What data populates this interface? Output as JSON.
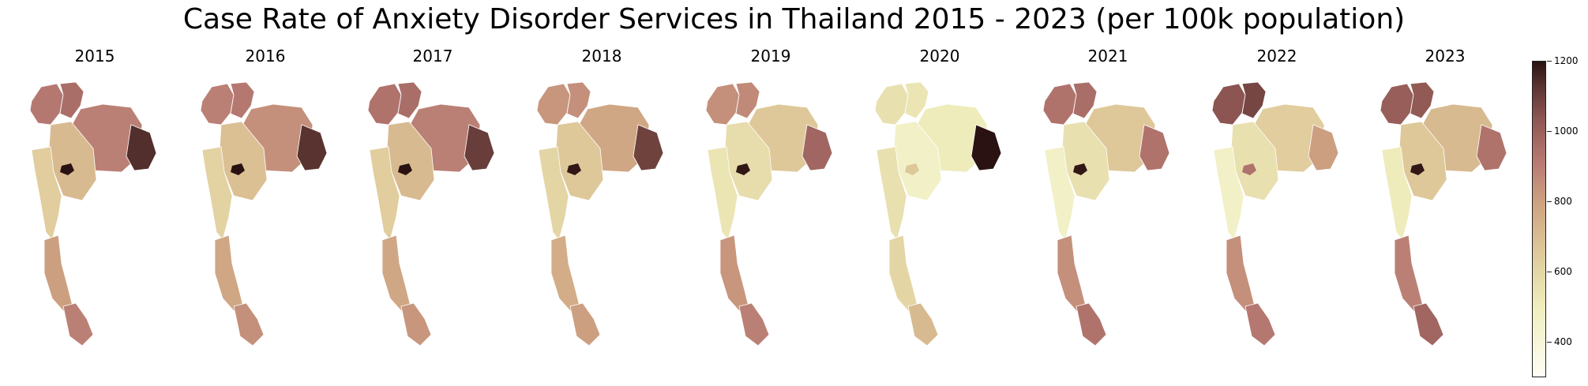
{
  "title": "Case Rate of Anxiety Disorder Services in Thailand 2015 - 2023 (per 100k population)",
  "maps": [
    {
      "year": "2015",
      "tones": {
        "north": 0.62,
        "northwest": 0.58,
        "northeast": 0.55,
        "east_edge": 0.88,
        "central": 0.35,
        "bangkok": 1.0,
        "west": 0.28,
        "south": 0.45,
        "deep_south": 0.55
      }
    },
    {
      "year": "2016",
      "tones": {
        "north": 0.58,
        "northwest": 0.55,
        "northeast": 0.5,
        "east_edge": 0.86,
        "central": 0.33,
        "bangkok": 1.0,
        "west": 0.26,
        "south": 0.42,
        "deep_south": 0.5
      }
    },
    {
      "year": "2017",
      "tones": {
        "north": 0.62,
        "northwest": 0.6,
        "northeast": 0.55,
        "east_edge": 0.82,
        "central": 0.35,
        "bangkok": 1.0,
        "west": 0.28,
        "south": 0.42,
        "deep_south": 0.48
      }
    },
    {
      "year": "2018",
      "tones": {
        "north": 0.5,
        "northwest": 0.48,
        "northeast": 0.42,
        "east_edge": 0.8,
        "central": 0.3,
        "bangkok": 0.98,
        "west": 0.25,
        "south": 0.4,
        "deep_south": 0.45
      }
    },
    {
      "year": "2019",
      "tones": {
        "north": 0.52,
        "northwest": 0.5,
        "northeast": 0.3,
        "east_edge": 0.65,
        "central": 0.22,
        "bangkok": 0.98,
        "west": 0.18,
        "south": 0.48,
        "deep_south": 0.55
      }
    },
    {
      "year": "2020",
      "tones": {
        "north": 0.18,
        "northwest": 0.2,
        "northeast": 0.15,
        "east_edge": 1.0,
        "central": 0.12,
        "bangkok": 0.3,
        "west": 0.2,
        "south": 0.25,
        "deep_south": 0.35
      }
    },
    {
      "year": "2021",
      "tones": {
        "north": 0.62,
        "northwest": 0.6,
        "northeast": 0.3,
        "east_edge": 0.6,
        "central": 0.2,
        "bangkok": 0.98,
        "west": 0.12,
        "south": 0.5,
        "deep_south": 0.6
      }
    },
    {
      "year": "2022",
      "tones": {
        "north": 0.78,
        "northwest": 0.72,
        "northeast": 0.28,
        "east_edge": 0.45,
        "central": 0.2,
        "bangkok": 0.6,
        "west": 0.12,
        "south": 0.5,
        "deep_south": 0.58
      }
    },
    {
      "year": "2023",
      "tones": {
        "north": 0.7,
        "northwest": 0.68,
        "northeast": 0.35,
        "east_edge": 0.6,
        "central": 0.3,
        "bangkok": 0.98,
        "west": 0.15,
        "south": 0.55,
        "deep_south": 0.65
      }
    }
  ],
  "colorbar": {
    "min": 300,
    "max": 1200,
    "ticks": [
      "400",
      "600",
      "800",
      "1000",
      "1200"
    ],
    "tick_values": [
      400,
      600,
      800,
      1000,
      1200
    ],
    "colors": [
      "#fffdf5",
      "#efeebd",
      "#e0cc9c",
      "#cfa582",
      "#b87a73",
      "#8e5652",
      "#5a3431",
      "#2a1212"
    ]
  }
}
